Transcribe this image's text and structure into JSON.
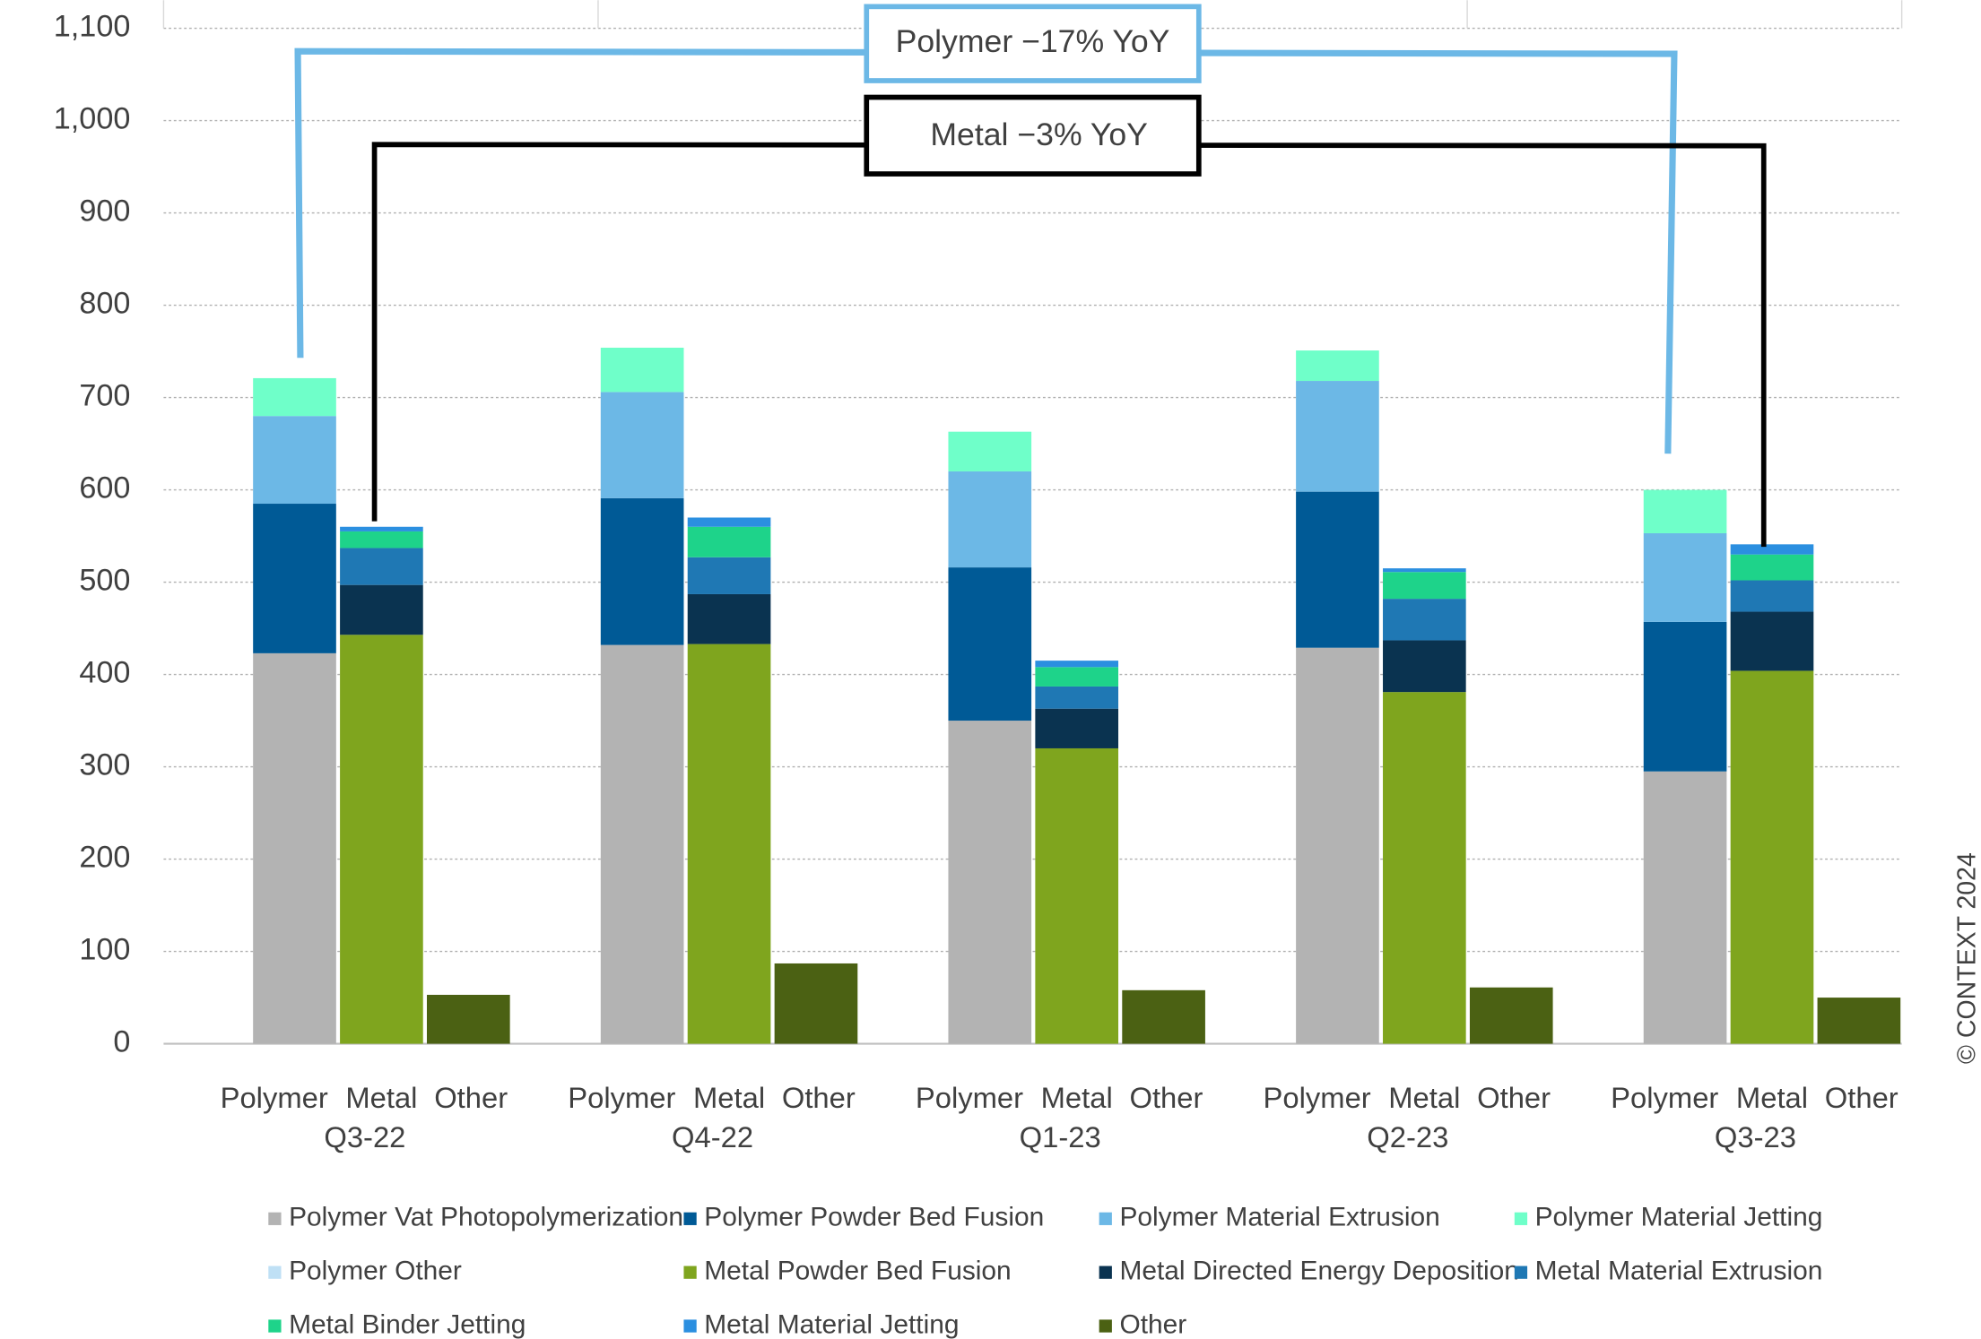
{
  "chart_data": {
    "type": "grouped-stacked-bar",
    "groups": [
      "Q3-22",
      "Q4-22",
      "Q1-23",
      "Q2-23",
      "Q3-23"
    ],
    "bars": [
      "Polymer",
      "Metal",
      "Other"
    ],
    "series": [
      {
        "name": "Polymer Vat Photopolymerization",
        "color": "#b3b3b3",
        "stack": 0,
        "values": [
          423,
          432,
          350,
          429,
          295
        ]
      },
      {
        "name": "Polymer Powder Bed Fusion",
        "color": "#005a96",
        "stack": 0,
        "values": [
          162,
          159,
          166,
          169,
          162
        ]
      },
      {
        "name": "Polymer Material Extrusion",
        "color": "#6cb8e6",
        "stack": 0,
        "values": [
          95,
          115,
          104,
          120,
          96
        ]
      },
      {
        "name": "Polymer Material Jetting",
        "color": "#6fffc9",
        "stack": 0,
        "values": [
          41,
          48,
          43,
          33,
          47
        ]
      },
      {
        "name": "Polymer Other",
        "color": "#bfe0f5",
        "stack": 0,
        "values": [
          0,
          0,
          0,
          0,
          0
        ]
      },
      {
        "name": "Metal Powder Bed Fusion",
        "color": "#7fa51e",
        "stack": 1,
        "values": [
          443,
          433,
          320,
          381,
          404
        ]
      },
      {
        "name": "Metal Directed Energy Deposition",
        "color": "#0a3350",
        "stack": 1,
        "values": [
          54,
          54,
          43,
          56,
          64
        ]
      },
      {
        "name": "Metal Material Extrusion",
        "color": "#1f78b4",
        "stack": 1,
        "values": [
          40,
          40,
          24,
          45,
          34
        ]
      },
      {
        "name": "Metal Binder Jetting",
        "color": "#1ed38a",
        "stack": 1,
        "values": [
          18,
          33,
          21,
          29,
          28
        ]
      },
      {
        "name": "Metal Material Jetting",
        "color": "#2b8fe0",
        "stack": 1,
        "values": [
          5,
          10,
          7,
          4,
          11
        ]
      },
      {
        "name": "Other",
        "color": "#4b6113",
        "stack": 2,
        "values": [
          53,
          87,
          58,
          61,
          50
        ]
      }
    ],
    "ylim": [
      0,
      1100
    ],
    "yticks": [
      0,
      100,
      200,
      300,
      400,
      500,
      600,
      700,
      800,
      900,
      {
        "value": 1000,
        "label": "1,000"
      },
      {
        "value": 1100,
        "label": "1,100"
      }
    ],
    "grid": true,
    "annotations": [
      "Polymer −17% YoY",
      "Metal −3% YoY"
    ],
    "copyright": "© CONTEXT 2024"
  }
}
